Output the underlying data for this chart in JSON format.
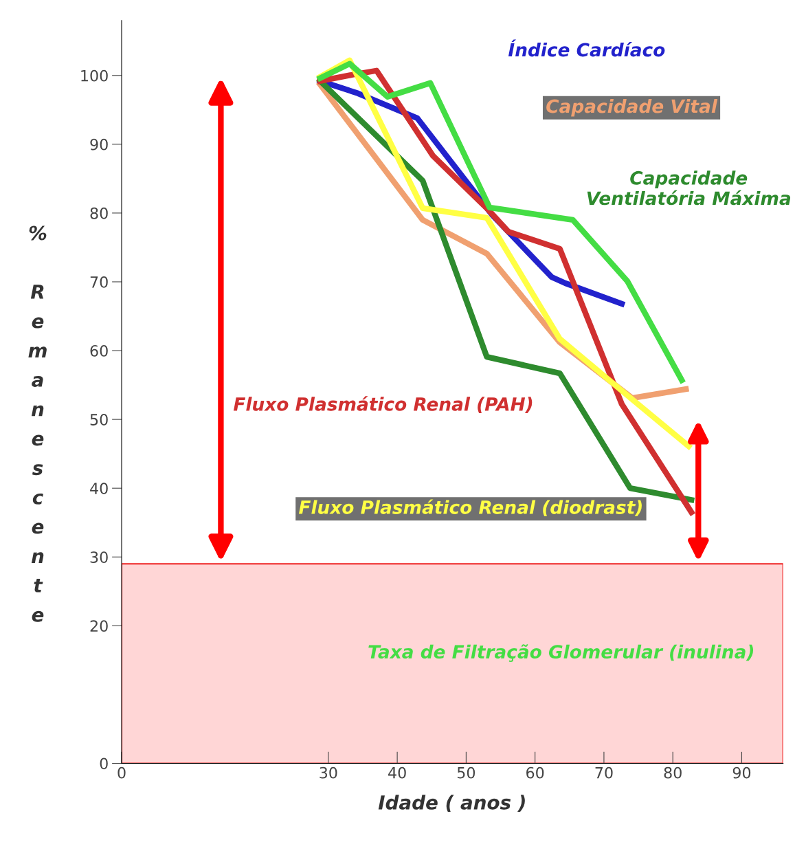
{
  "chart_data": {
    "type": "line",
    "xlabel": "Idade ( anos )",
    "ylabel": "% Remanescente",
    "xlim": [
      0,
      96
    ],
    "ylim": [
      0,
      108
    ],
    "xticks": [
      0,
      30,
      40,
      50,
      60,
      70,
      80,
      90
    ],
    "yticks": [
      0,
      20,
      30,
      40,
      50,
      60,
      70,
      80,
      90,
      100
    ],
    "grid": false,
    "marker": "none",
    "line_style": "solid",
    "bands": [
      {
        "axis": "y",
        "from": 0,
        "to": 29,
        "color": "#ffd6d6"
      }
    ],
    "series": [
      {
        "name": "Índice Cardíaco",
        "color": "#2222cc",
        "x": [
          28.8,
          34.3,
          42.9,
          53.8,
          62.4,
          64.4,
          72.6
        ],
        "values": [
          99.2,
          97.4,
          93.8,
          79.7,
          70.7,
          69.8,
          66.8
        ]
      },
      {
        "name": "Capacidade Vital",
        "color": "#f0a070",
        "x": [
          28.8,
          43.7,
          53,
          63.6,
          74.1,
          81.9
        ],
        "values": [
          98.7,
          79,
          74.1,
          61.2,
          53.1,
          54.4
        ]
      },
      {
        "name": "Capacidade Ventilatória Máxima",
        "color": "#2e8b2e",
        "x": [
          28.8,
          43.7,
          53,
          63.6,
          73.8,
          82.7
        ],
        "values": [
          99.2,
          84.7,
          59.1,
          56.7,
          40,
          38.3
        ]
      },
      {
        "name": "Fluxo Plasmático Renal (PAH)",
        "color": "#d03030",
        "x": [
          28.8,
          33.5,
          37,
          45.2,
          53,
          56.1,
          63.6,
          72.6,
          82.7
        ],
        "values": [
          99.2,
          100.1,
          100.7,
          88.3,
          80.7,
          77.3,
          74.8,
          52.2,
          36.5
        ]
      },
      {
        "name": "Fluxo Plasmático Renal (diodrast)",
        "color": "#ffff44",
        "x": [
          28.8,
          33.1,
          43.7,
          53,
          63.6,
          73.4,
          82.3
        ],
        "values": [
          99.8,
          102.2,
          80.7,
          79.3,
          61.7,
          53.5,
          46.1
        ]
      },
      {
        "name": "Taxa de Filtração Glomerular (inulina)",
        "color": "#44dd44",
        "x": [
          28.8,
          33.1,
          38.6,
          44.8,
          53.4,
          65.5,
          73.4,
          81.3
        ],
        "values": [
          99.6,
          101.7,
          96.9,
          98.9,
          80.8,
          79,
          70.1,
          55.7
        ]
      }
    ]
  }
}
